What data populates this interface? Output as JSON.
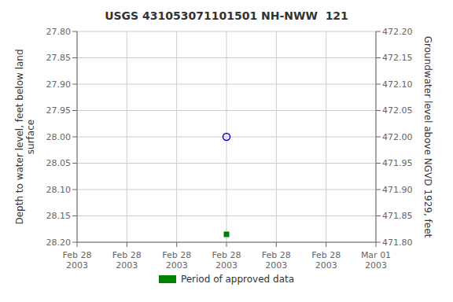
{
  "chart_data": {
    "type": "scatter",
    "title": "USGS 431053071101501 NH-NWW  121",
    "categories": [
      "Feb 28\n2003",
      "Feb 28\n2003",
      "Feb 28\n2003",
      "Feb 28\n2003",
      "Feb 28\n2003",
      "Feb 28\n2003",
      "Mar 01\n2003"
    ],
    "ylabel": "Depth to water level, feet below land\nsurface",
    "y2label": "Groundwater level above NGVD 1929, feet",
    "ylim": [
      28.2,
      27.8
    ],
    "yticks": [
      {
        "value": 27.8,
        "label": "27.80"
      },
      27.85,
      {
        "value": 27.9,
        "label": "27.90"
      },
      27.95,
      {
        "value": 28.0,
        "label": "28.00"
      },
      28.05,
      {
        "value": 28.1,
        "label": "28.10"
      },
      28.15,
      {
        "value": 28.2,
        "label": "28.20"
      }
    ],
    "y2lim": [
      471.8,
      472.2
    ],
    "y2ticks": [
      {
        "value": 471.8,
        "label": "471.80"
      },
      471.85,
      {
        "value": 471.9,
        "label": "471.90"
      },
      471.95,
      {
        "value": 472.0,
        "label": "472.00"
      },
      472.05,
      {
        "value": 472.1,
        "label": "472.10"
      },
      472.15,
      {
        "value": 472.2,
        "label": "472.20"
      }
    ],
    "grid": true,
    "legend": "bottom",
    "series": [
      {
        "color": "#0000cc",
        "marker": "circle",
        "values": [
          null,
          null,
          null,
          28.0,
          null,
          null,
          null
        ]
      },
      {
        "name": "Period of approved data",
        "color": "#008000",
        "marker": "square",
        "values": [
          null,
          null,
          null,
          28.185,
          null,
          null,
          null
        ]
      }
    ]
  }
}
